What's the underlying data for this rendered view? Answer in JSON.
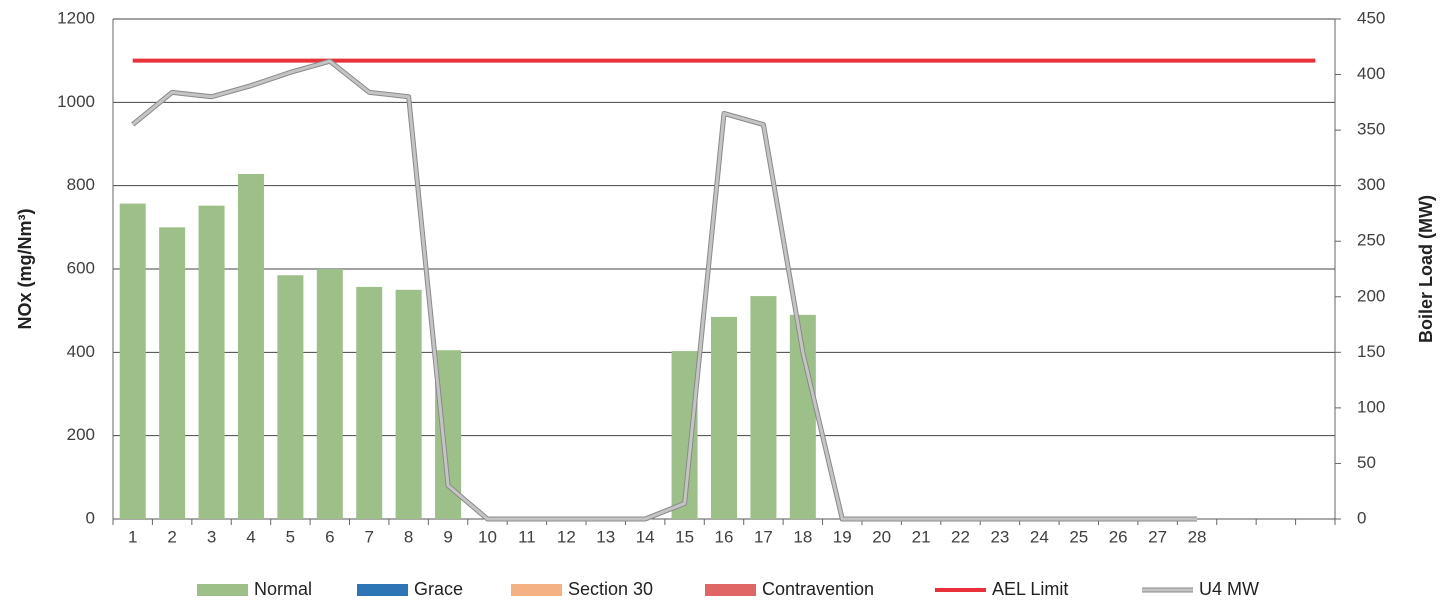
{
  "chart_data": {
    "type": "bar",
    "categories": [
      "1",
      "2",
      "3",
      "4",
      "5",
      "6",
      "7",
      "8",
      "9",
      "10",
      "11",
      "12",
      "13",
      "14",
      "15",
      "16",
      "17",
      "18",
      "19",
      "20",
      "21",
      "22",
      "23",
      "24",
      "25",
      "26",
      "27",
      "28",
      null,
      null,
      null
    ],
    "y_label": "NOx (mg/Nm³)",
    "y2_label": "Boiler Load (MW)",
    "ylim": [
      0,
      1200
    ],
    "yticks": [
      0,
      200,
      400,
      600,
      800,
      1000,
      1200
    ],
    "y2lim": [
      0,
      450
    ],
    "y2ticks": [
      0,
      50,
      100,
      150,
      200,
      250,
      300,
      350,
      400,
      450
    ],
    "grid": true,
    "legend": "bottom",
    "series": [
      {
        "name": "Normal",
        "type": "bar",
        "color": "#9dc088",
        "values": [
          757,
          700,
          752,
          828,
          585,
          600,
          557,
          550,
          405,
          0,
          0,
          0,
          0,
          0,
          403,
          485,
          535,
          490,
          0,
          0,
          0,
          0,
          0,
          0,
          0,
          0,
          0,
          0,
          null,
          null,
          null
        ]
      },
      {
        "name": "Grace",
        "type": "bar",
        "color": "#2e75b6",
        "values": [
          0,
          0,
          0,
          0,
          0,
          0,
          0,
          0,
          0,
          0,
          0,
          0,
          0,
          0,
          0,
          0,
          0,
          0,
          0,
          0,
          0,
          0,
          0,
          0,
          0,
          0,
          0,
          0,
          null,
          null,
          null
        ]
      },
      {
        "name": "Section 30",
        "type": "bar",
        "color": "#f4b183",
        "values": [
          0,
          0,
          0,
          0,
          0,
          0,
          0,
          0,
          0,
          0,
          0,
          0,
          0,
          0,
          0,
          0,
          0,
          0,
          0,
          0,
          0,
          0,
          0,
          0,
          0,
          0,
          0,
          0,
          null,
          null,
          null
        ]
      },
      {
        "name": "Contravention",
        "type": "bar",
        "color": "#e06666",
        "values": [
          0,
          0,
          0,
          0,
          0,
          0,
          0,
          0,
          0,
          0,
          0,
          0,
          0,
          0,
          0,
          0,
          0,
          0,
          0,
          0,
          0,
          0,
          0,
          0,
          0,
          0,
          0,
          0,
          null,
          null,
          null
        ]
      },
      {
        "name": "AEL Limit",
        "type": "line",
        "color": "#e8313a",
        "values": [
          1100,
          1100,
          1100,
          1100,
          1100,
          1100,
          1100,
          1100,
          1100,
          1100,
          1100,
          1100,
          1100,
          1100,
          1100,
          1100,
          1100,
          1100,
          1100,
          1100,
          1100,
          1100,
          1100,
          1100,
          1100,
          1100,
          1100,
          1100,
          1100,
          1100,
          1100
        ]
      },
      {
        "name": "U4 MW",
        "type": "line",
        "axis": "y2",
        "color": "#c4c4c4",
        "values": [
          355,
          384,
          380,
          390,
          402,
          412,
          384,
          380,
          30,
          0,
          0,
          0,
          0,
          0,
          14,
          365,
          355,
          150,
          0,
          0,
          0,
          0,
          0,
          0,
          0,
          0,
          0,
          0,
          null,
          null,
          null
        ]
      }
    ]
  }
}
